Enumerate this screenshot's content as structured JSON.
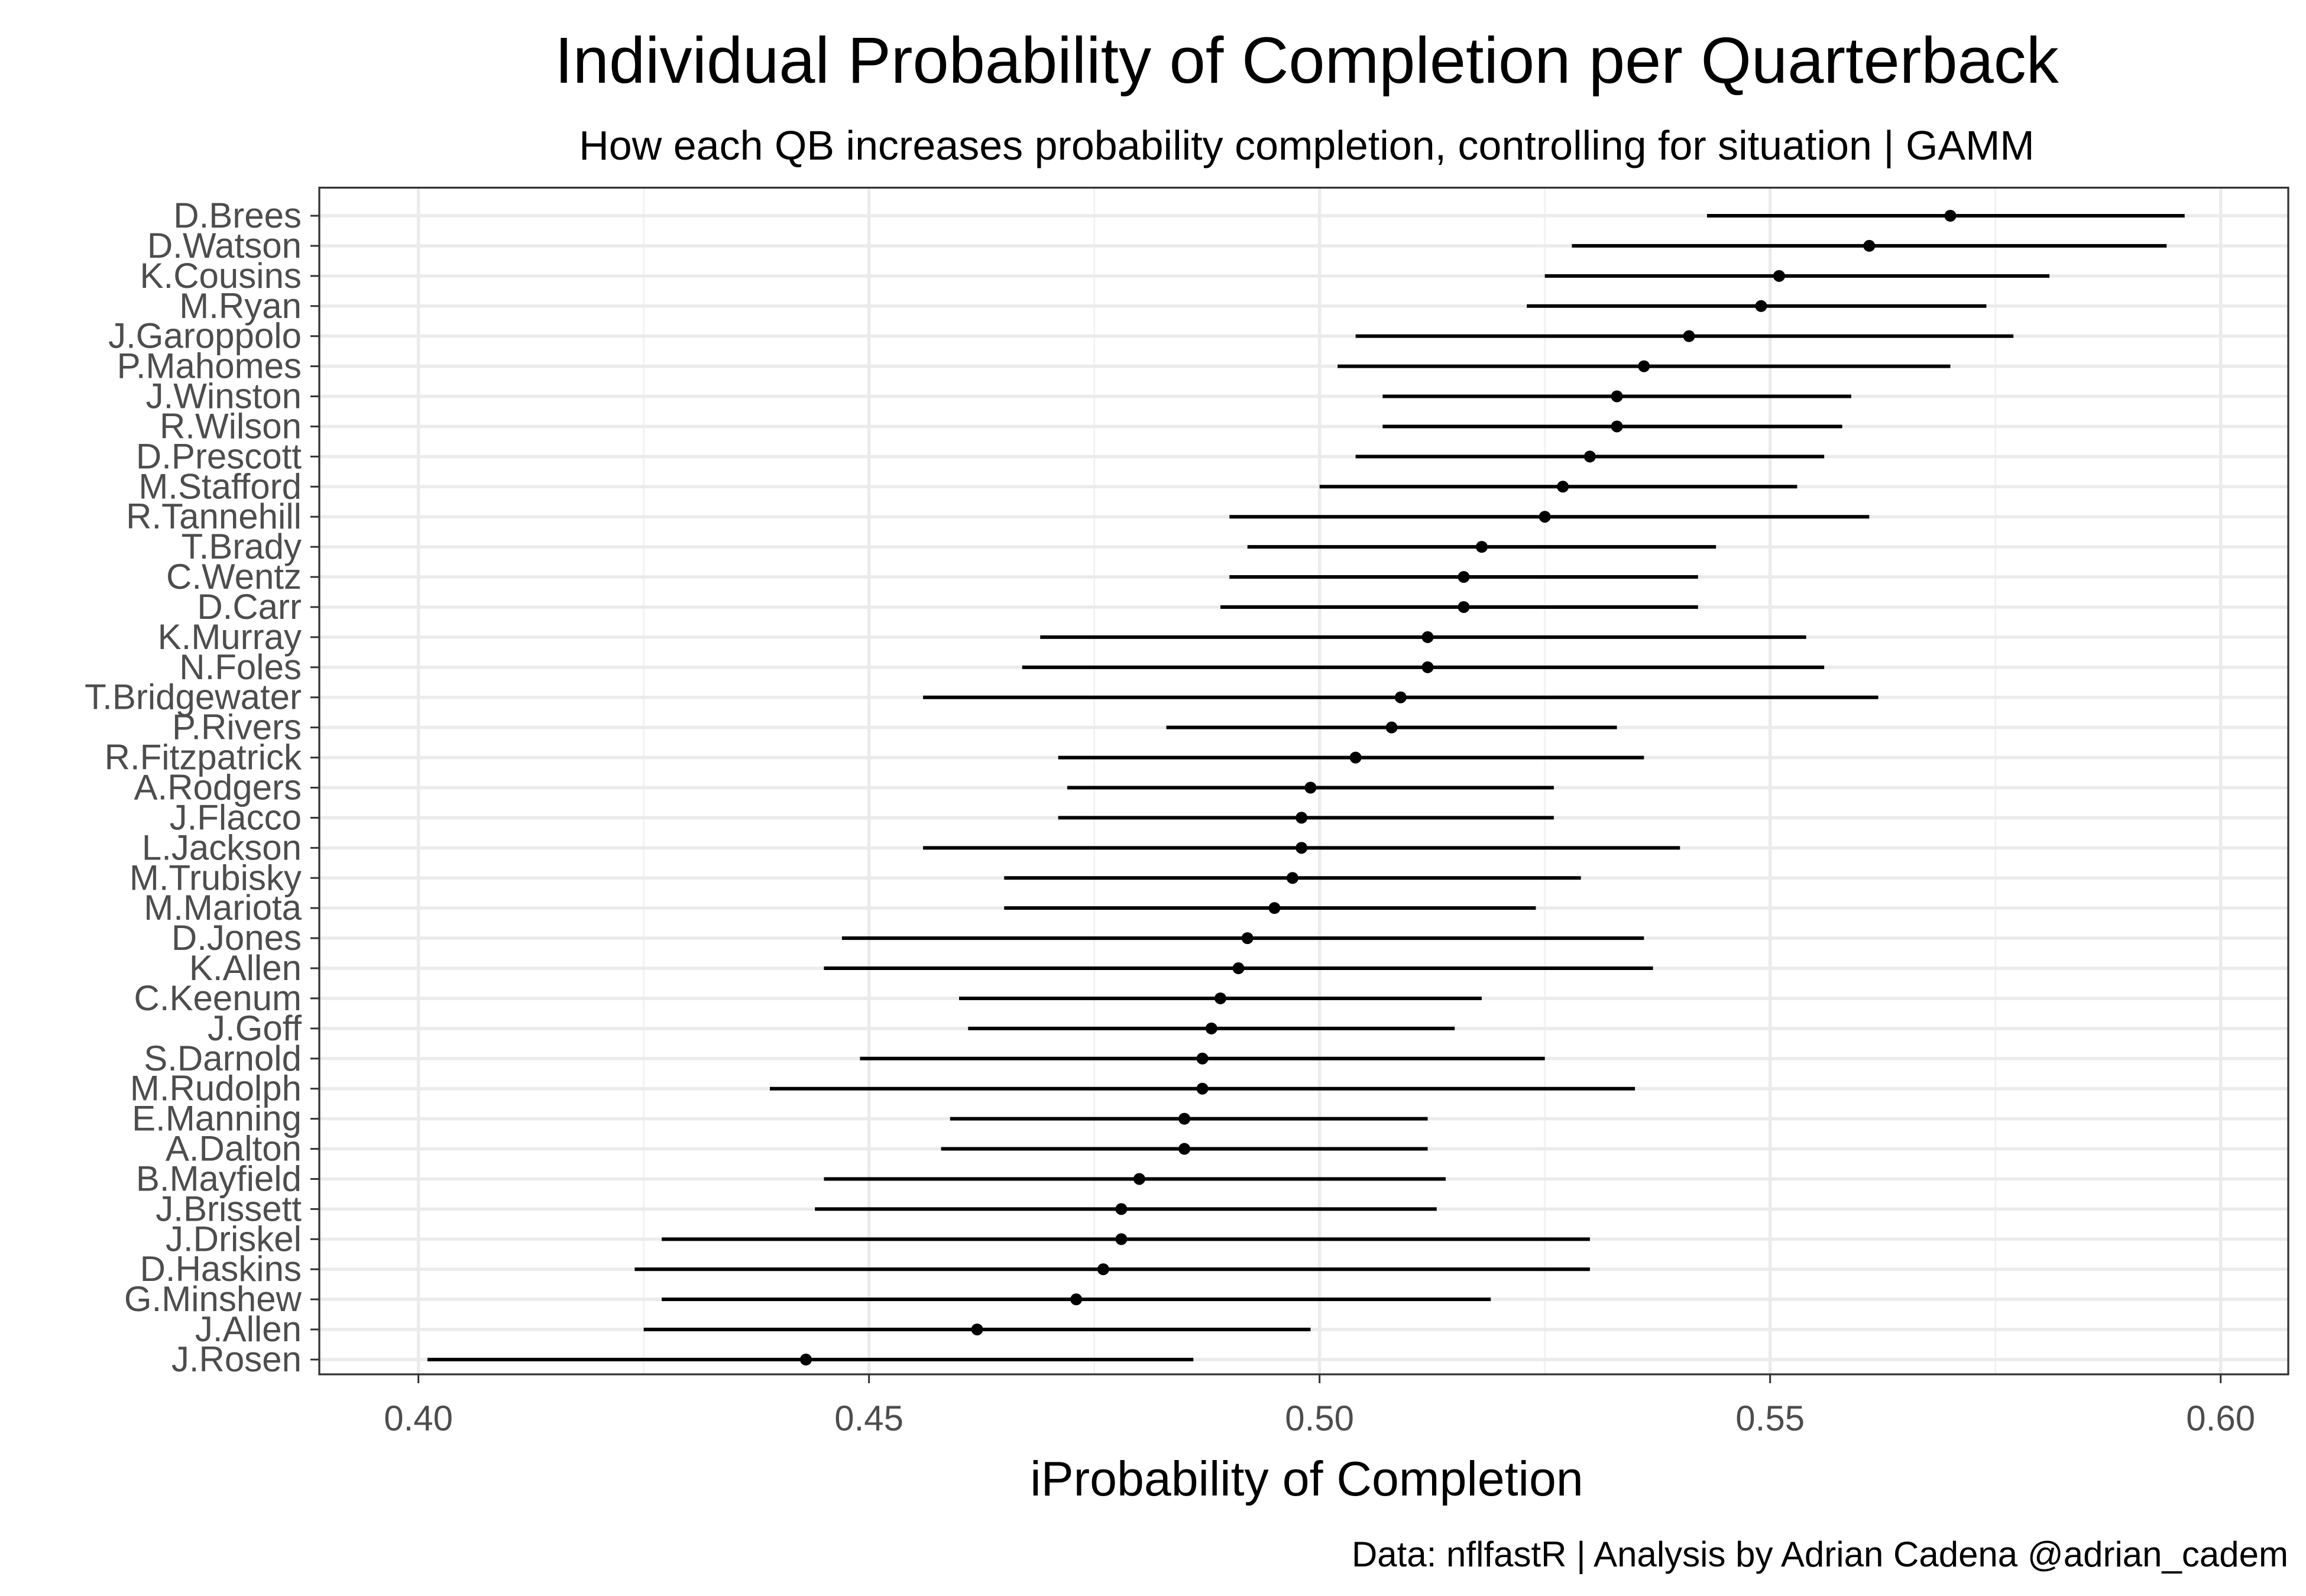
{
  "chart_data": {
    "type": "scatter",
    "subtype": "point-range",
    "title": "Individual Probability of Completion per Quarterback",
    "subtitle": "How each QB increases probability completion, controlling for situation | GAMM",
    "caption": "Data: nflfastR | Analysis by Adrian Cadena @adrian_cadem",
    "xlabel": "iProbability of Completion",
    "ylabel": "",
    "xlim": [
      0.389,
      0.6075
    ],
    "xticks": [
      "0.40",
      "0.45",
      "0.50",
      "0.55",
      "0.60"
    ],
    "grid": true,
    "legend": "none",
    "series": [
      {
        "name": "D.Brees",
        "estimate": 0.57,
        "lower": 0.543,
        "upper": 0.596
      },
      {
        "name": "D.Watson",
        "estimate": 0.561,
        "lower": 0.528,
        "upper": 0.594
      },
      {
        "name": "K.Cousins",
        "estimate": 0.551,
        "lower": 0.525,
        "upper": 0.581
      },
      {
        "name": "M.Ryan",
        "estimate": 0.549,
        "lower": 0.523,
        "upper": 0.574
      },
      {
        "name": "J.Garoppolo",
        "estimate": 0.541,
        "lower": 0.504,
        "upper": 0.577
      },
      {
        "name": "P.Mahomes",
        "estimate": 0.536,
        "lower": 0.502,
        "upper": 0.57
      },
      {
        "name": "J.Winston",
        "estimate": 0.533,
        "lower": 0.507,
        "upper": 0.559
      },
      {
        "name": "R.Wilson",
        "estimate": 0.533,
        "lower": 0.507,
        "upper": 0.558
      },
      {
        "name": "D.Prescott",
        "estimate": 0.53,
        "lower": 0.504,
        "upper": 0.556
      },
      {
        "name": "M.Stafford",
        "estimate": 0.527,
        "lower": 0.5,
        "upper": 0.553
      },
      {
        "name": "R.Tannehill",
        "estimate": 0.525,
        "lower": 0.49,
        "upper": 0.561
      },
      {
        "name": "T.Brady",
        "estimate": 0.518,
        "lower": 0.492,
        "upper": 0.544
      },
      {
        "name": "C.Wentz",
        "estimate": 0.516,
        "lower": 0.49,
        "upper": 0.542
      },
      {
        "name": "D.Carr",
        "estimate": 0.516,
        "lower": 0.489,
        "upper": 0.542
      },
      {
        "name": "K.Murray",
        "estimate": 0.512,
        "lower": 0.469,
        "upper": 0.554
      },
      {
        "name": "N.Foles",
        "estimate": 0.512,
        "lower": 0.467,
        "upper": 0.556
      },
      {
        "name": "T.Bridgewater",
        "estimate": 0.509,
        "lower": 0.456,
        "upper": 0.562
      },
      {
        "name": "P.Rivers",
        "estimate": 0.508,
        "lower": 0.483,
        "upper": 0.533
      },
      {
        "name": "R.Fitzpatrick",
        "estimate": 0.504,
        "lower": 0.471,
        "upper": 0.536
      },
      {
        "name": "A.Rodgers",
        "estimate": 0.499,
        "lower": 0.472,
        "upper": 0.526
      },
      {
        "name": "J.Flacco",
        "estimate": 0.498,
        "lower": 0.471,
        "upper": 0.526
      },
      {
        "name": "L.Jackson",
        "estimate": 0.498,
        "lower": 0.456,
        "upper": 0.54
      },
      {
        "name": "M.Trubisky",
        "estimate": 0.497,
        "lower": 0.465,
        "upper": 0.529
      },
      {
        "name": "M.Mariota",
        "estimate": 0.495,
        "lower": 0.465,
        "upper": 0.524
      },
      {
        "name": "D.Jones",
        "estimate": 0.492,
        "lower": 0.447,
        "upper": 0.536
      },
      {
        "name": "K.Allen",
        "estimate": 0.491,
        "lower": 0.445,
        "upper": 0.537
      },
      {
        "name": "C.Keenum",
        "estimate": 0.489,
        "lower": 0.46,
        "upper": 0.518
      },
      {
        "name": "J.Goff",
        "estimate": 0.488,
        "lower": 0.461,
        "upper": 0.515
      },
      {
        "name": "S.Darnold",
        "estimate": 0.487,
        "lower": 0.449,
        "upper": 0.525
      },
      {
        "name": "M.Rudolph",
        "estimate": 0.487,
        "lower": 0.439,
        "upper": 0.535
      },
      {
        "name": "E.Manning",
        "estimate": 0.485,
        "lower": 0.459,
        "upper": 0.512
      },
      {
        "name": "A.Dalton",
        "estimate": 0.485,
        "lower": 0.458,
        "upper": 0.512
      },
      {
        "name": "B.Mayfield",
        "estimate": 0.48,
        "lower": 0.445,
        "upper": 0.514
      },
      {
        "name": "J.Brissett",
        "estimate": 0.478,
        "lower": 0.444,
        "upper": 0.513
      },
      {
        "name": "J.Driskel",
        "estimate": 0.478,
        "lower": 0.427,
        "upper": 0.53
      },
      {
        "name": "D.Haskins",
        "estimate": 0.476,
        "lower": 0.424,
        "upper": 0.53
      },
      {
        "name": "G.Minshew",
        "estimate": 0.473,
        "lower": 0.427,
        "upper": 0.519
      },
      {
        "name": "J.Allen",
        "estimate": 0.462,
        "lower": 0.425,
        "upper": 0.499
      },
      {
        "name": "J.Rosen",
        "estimate": 0.443,
        "lower": 0.401,
        "upper": 0.486
      }
    ]
  }
}
